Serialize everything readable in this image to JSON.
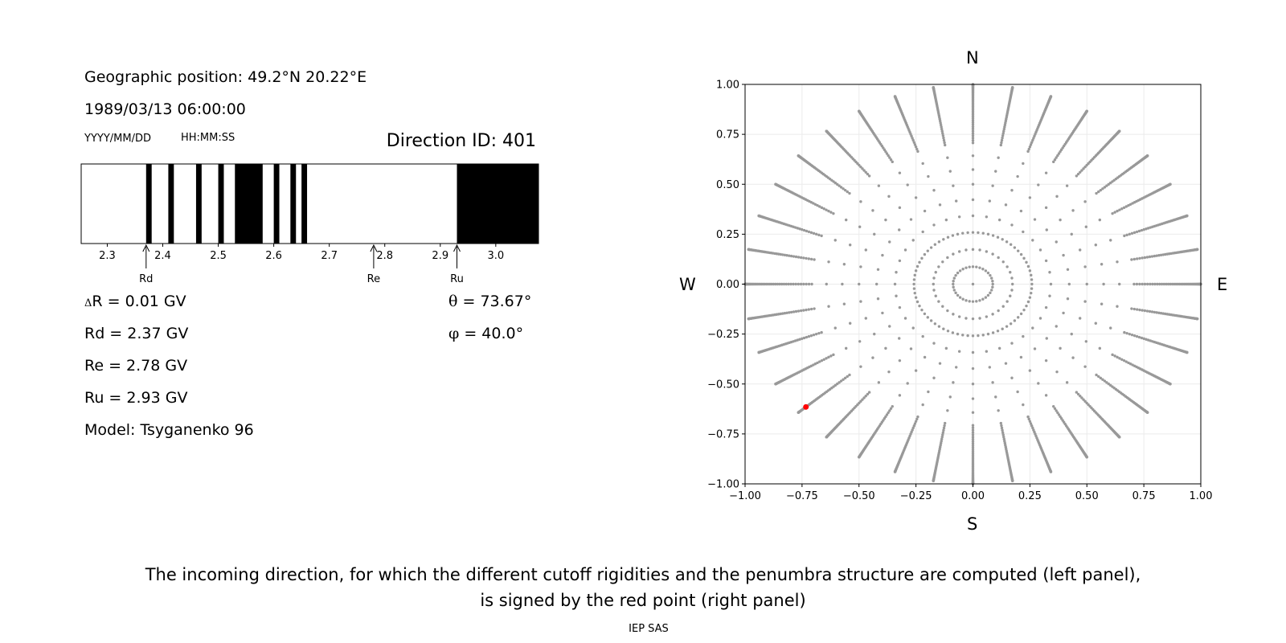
{
  "left_panel": {
    "geo_position": "Geographic position: 49.2°N 20.22°E",
    "datetime": "1989/03/13 06:00:00",
    "date_format": "YYYY/MM/DD",
    "time_format": "HH:MM:SS",
    "direction_id": "Direction ID: 401",
    "delta_r_symbol": "Δ",
    "delta_r_text": "R = 0.01 GV",
    "rd_text": "Rd = 2.37 GV",
    "re_text": "Re = 2.78 GV",
    "ru_text": "Ru = 2.93 GV",
    "model_text": "Model: Tsyganenko 96",
    "theta_symbol": "θ",
    "theta_text": " = 73.67°",
    "phi_symbol": "φ",
    "phi_text": " = 40.0°"
  },
  "right_panel": {
    "north_label": "N",
    "south_label": "S",
    "west_label": "W",
    "east_label": "E"
  },
  "caption_line1": "The incoming direction, for which the different cutoff rigidities and the penumbra structure are computed (left panel),",
  "caption_line2": "is signed by the red point (right panel)",
  "footer": "IEP SAS",
  "colors": {
    "forbidden": "#000000",
    "allowed": "#ffffff",
    "grid_points": "#999999",
    "selected_point": "#ff0000"
  },
  "chart_data": [
    {
      "type": "bar",
      "description_role": "penumbra structure",
      "xlim": [
        2.253,
        3.077
      ],
      "x_ticks": [
        2.3,
        2.4,
        2.5,
        2.6,
        2.7,
        2.8,
        2.9,
        3.0
      ],
      "x_tick_labels": [
        "2.3",
        "2.4",
        "2.5",
        "2.6",
        "2.7",
        "2.8",
        "2.9",
        "3.0"
      ],
      "forbidden_bands": [
        [
          2.37,
          2.38
        ],
        [
          2.41,
          2.42
        ],
        [
          2.46,
          2.47
        ],
        [
          2.5,
          2.51
        ],
        [
          2.53,
          2.58
        ],
        [
          2.6,
          2.61
        ],
        [
          2.63,
          2.64
        ],
        [
          2.65,
          2.66
        ],
        [
          2.93,
          3.077
        ]
      ],
      "markers": [
        {
          "label": "Rd",
          "value": 2.37
        },
        {
          "label": "Re",
          "value": 2.78
        },
        {
          "label": "Ru",
          "value": 2.93
        }
      ]
    },
    {
      "type": "scatter",
      "description_role": "asymptotic direction grid",
      "xlim": [
        -1.0,
        1.0
      ],
      "ylim": [
        -1.0,
        1.0
      ],
      "x_ticks": [
        -1.0,
        -0.75,
        -0.5,
        -0.25,
        0.0,
        0.25,
        0.5,
        0.75,
        1.0
      ],
      "x_tick_labels": [
        "−1.00",
        "−0.75",
        "−0.50",
        "−0.25",
        "0.00",
        "0.25",
        "0.50",
        "0.75",
        "1.00"
      ],
      "y_ticks": [
        1.0,
        0.75,
        0.5,
        0.25,
        0.0,
        -0.25,
        -0.5,
        -0.75,
        -1.0
      ],
      "y_tick_labels": [
        "1.00",
        "0.75",
        "0.50",
        "0.25",
        "0.00",
        "−0.25",
        "−0.50",
        "−0.75",
        "−1.00"
      ],
      "grid": true,
      "grid_rule": "radial spokes every 10° in azimuth; points at r = sin(zenith) for zenith 0°–90°",
      "azimuth_step_deg": 10,
      "inner_ring_zenith_step_deg": 5,
      "outer_zenith_step_deg": 1,
      "highlighted_point": {
        "x": -0.733,
        "y": -0.615
      }
    }
  ]
}
